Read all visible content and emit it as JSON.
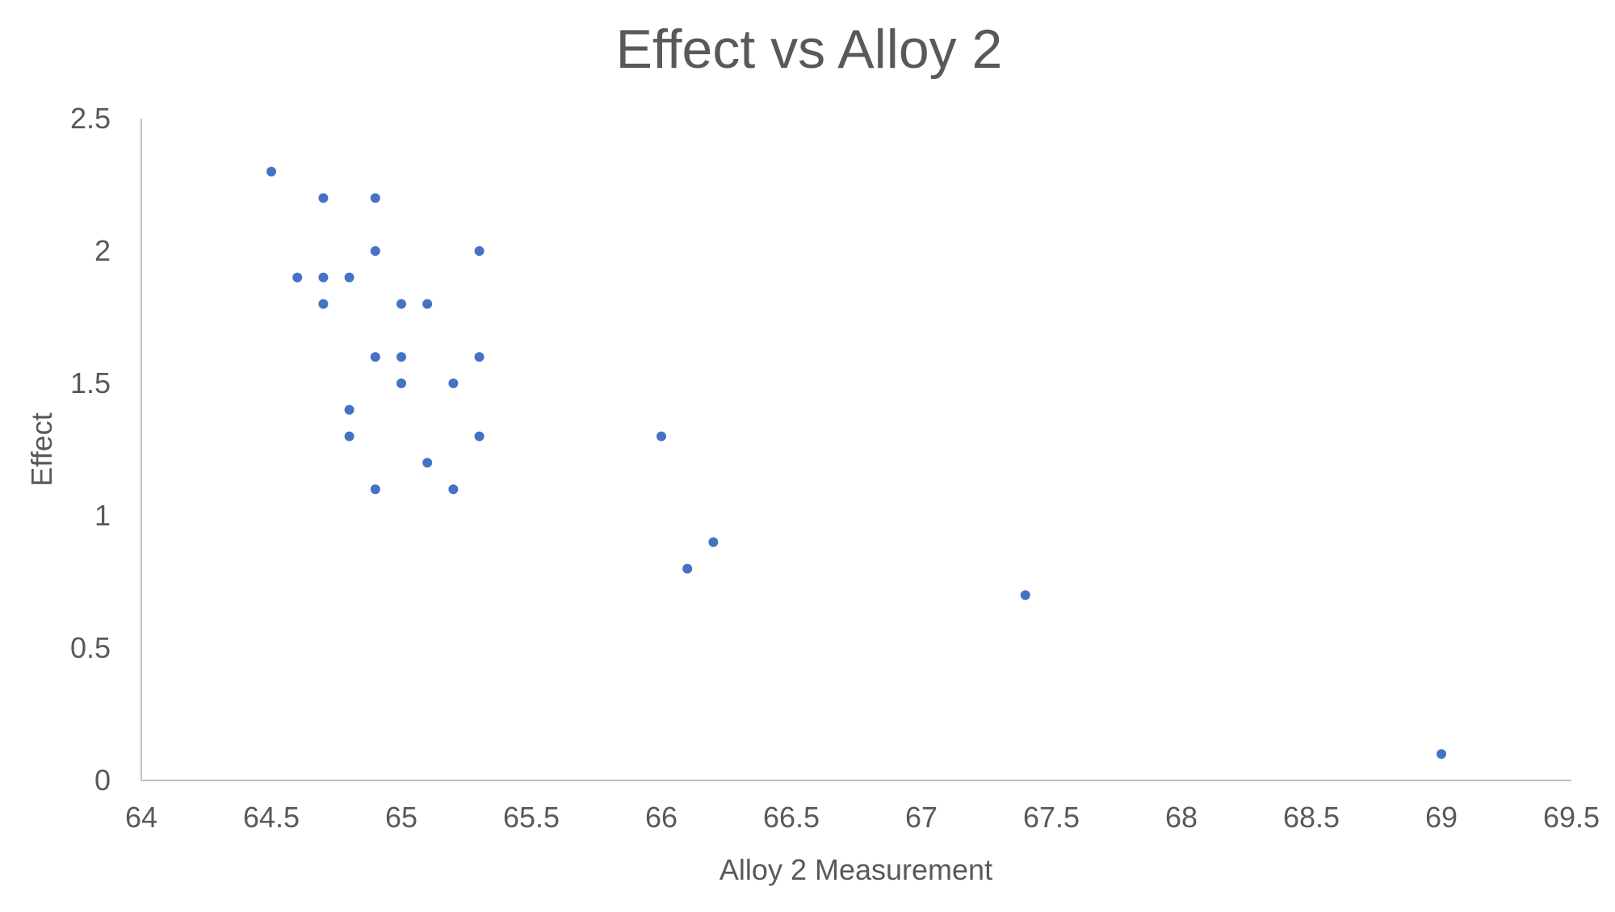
{
  "chart_data": {
    "type": "scatter",
    "title": "Effect vs Alloy 2",
    "xlabel": "Alloy 2 Measurement",
    "ylabel": "Effect",
    "xlim": [
      64,
      69.5
    ],
    "ylim": [
      0,
      2.5
    ],
    "xticks": [
      "64",
      "64.5",
      "65",
      "65.5",
      "66",
      "66.5",
      "67",
      "67.5",
      "68",
      "68.5",
      "69",
      "69.5"
    ],
    "yticks": [
      "0",
      "0.5",
      "1",
      "1.5",
      "2",
      "2.5"
    ],
    "grid": false,
    "marker_color": "#4472c4",
    "axis_color": "#bfbfbf",
    "text_color": "#595959",
    "series": [
      {
        "x": [
          64.5,
          64.7,
          64.9,
          64.9,
          65.3,
          64.6,
          64.7,
          64.8,
          64.7,
          65.0,
          65.1,
          64.9,
          65.0,
          65.3,
          65.0,
          65.2,
          64.8,
          64.8,
          65.3,
          66.0,
          65.1,
          64.9,
          65.2,
          66.2,
          66.1,
          67.4,
          69.0
        ],
        "y": [
          2.3,
          2.2,
          2.2,
          2.0,
          2.0,
          1.9,
          1.9,
          1.9,
          1.8,
          1.8,
          1.8,
          1.6,
          1.6,
          1.6,
          1.5,
          1.5,
          1.4,
          1.3,
          1.3,
          1.3,
          1.2,
          1.1,
          1.1,
          0.9,
          0.8,
          0.7,
          0.1
        ]
      }
    ]
  }
}
